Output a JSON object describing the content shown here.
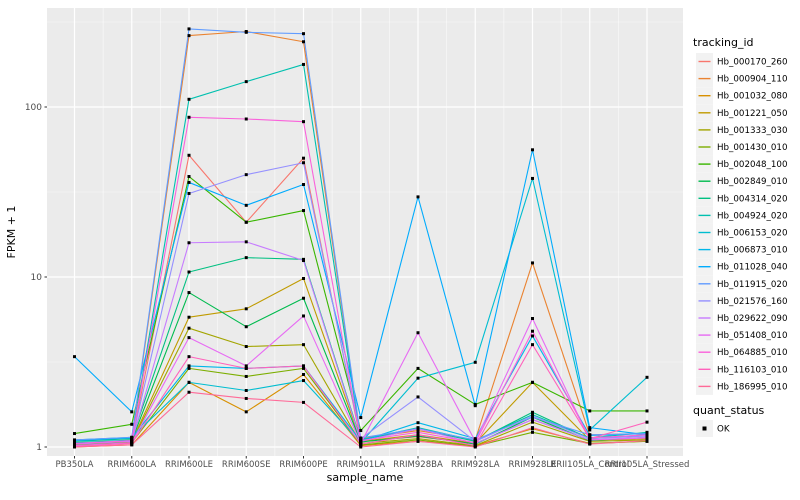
{
  "figure": {
    "background": "#FFFFFF",
    "panel_background": "#EBEBEB",
    "grid_color": "#FFFFFF",
    "tick_color": "#333333",
    "axis_text_color": "#4D4D4D",
    "marker_color": "#000000"
  },
  "chart_data": {
    "type": "line",
    "title": "",
    "xlabel": "sample_name",
    "ylabel": "FPKM + 1",
    "y_scale": "log10",
    "y_ticks": [
      1,
      10,
      100
    ],
    "y_tick_labels": [
      "1",
      "10",
      "100"
    ],
    "y_minor_ticks": [
      3.162,
      31.62,
      316.2
    ],
    "ylim": [
      1,
      357
    ],
    "grid": true,
    "legend_position": "right",
    "categories": [
      "PB350LA",
      "RRIM600LA",
      "RRIM600LE",
      "RRIM600SE",
      "RRIM600PE",
      "RRIM901LA",
      "RRIM928BA",
      "RRIM928LA",
      "RRIM928LE",
      "RRII105LA_Control",
      "RRII105LA_Stressed"
    ],
    "series": [
      {
        "name": "Hb_000170_260",
        "color": "#F8766D",
        "values": [
          1.05,
          1.08,
          52,
          21,
          50,
          1.08,
          1.15,
          1.05,
          1.45,
          1.1,
          1.12
        ]
      },
      {
        "name": "Hb_000904_110",
        "color": "#EA8331",
        "values": [
          1.1,
          1.12,
          263,
          278,
          242,
          1.12,
          1.25,
          1.1,
          12.1,
          1.18,
          1.2
        ]
      },
      {
        "name": "Hb_001032_080",
        "color": "#D89000",
        "values": [
          1.0,
          1.03,
          2.4,
          1.61,
          2.67,
          1.02,
          1.08,
          1.02,
          1.28,
          1.05,
          1.08
        ]
      },
      {
        "name": "Hb_001221_050",
        "color": "#C09B00",
        "values": [
          1.04,
          1.08,
          5.8,
          6.5,
          9.8,
          1.08,
          1.18,
          1.05,
          2.4,
          1.1,
          1.12
        ]
      },
      {
        "name": "Hb_001333_030",
        "color": "#A3A500",
        "values": [
          1.02,
          1.07,
          5.0,
          3.9,
          4.0,
          1.05,
          1.12,
          1.02,
          1.4,
          1.08,
          1.1
        ]
      },
      {
        "name": "Hb_001430_010",
        "color": "#7CAE00",
        "values": [
          1.03,
          1.06,
          2.9,
          2.6,
          2.9,
          1.03,
          1.1,
          1.01,
          1.22,
          1.05,
          1.08
        ]
      },
      {
        "name": "Hb_002048_100",
        "color": "#39B600",
        "values": [
          1.2,
          1.36,
          39,
          21,
          24.6,
          1.25,
          2.9,
          1.78,
          2.4,
          1.63,
          1.63
        ]
      },
      {
        "name": "Hb_002849_010",
        "color": "#00BB4E",
        "values": [
          1.05,
          1.09,
          8.1,
          5.1,
          7.5,
          1.07,
          1.16,
          1.04,
          1.5,
          1.09,
          1.14
        ]
      },
      {
        "name": "Hb_004314_020",
        "color": "#00C081",
        "values": [
          1.08,
          1.12,
          10.7,
          13,
          12.7,
          1.1,
          1.28,
          1.08,
          1.6,
          1.12,
          1.18
        ]
      },
      {
        "name": "Hb_004924_020",
        "color": "#00C0AF",
        "values": [
          1.06,
          1.1,
          111,
          141,
          178,
          1.1,
          1.3,
          1.09,
          1.55,
          1.13,
          1.22
        ]
      },
      {
        "name": "Hb_006153_020",
        "color": "#00BDD0",
        "values": [
          1.1,
          1.14,
          2.4,
          2.15,
          2.46,
          1.06,
          2.54,
          3.15,
          38,
          1.26,
          2.57
        ]
      },
      {
        "name": "Hb_006873_010",
        "color": "#00B7E9",
        "values": [
          1.09,
          1.13,
          3.0,
          2.9,
          3.0,
          1.08,
          1.39,
          1.12,
          4.5,
          1.17,
          1.2
        ]
      },
      {
        "name": "Hb_011028_040",
        "color": "#00ABFD",
        "values": [
          3.4,
          1.61,
          36,
          26.4,
          35,
          1.49,
          29.6,
          1.75,
          56,
          1.3,
          1.18
        ]
      },
      {
        "name": "Hb_011915_020",
        "color": "#619CFF",
        "values": [
          1.1,
          1.14,
          288,
          275,
          270,
          1.13,
          1.28,
          1.1,
          1.5,
          1.18,
          1.2
        ]
      },
      {
        "name": "Hb_021576_160",
        "color": "#9590FF",
        "values": [
          1.05,
          1.09,
          31,
          40,
          47,
          1.12,
          1.97,
          1.08,
          1.52,
          1.12,
          1.16
        ]
      },
      {
        "name": "Hb_029622_090",
        "color": "#C77CFF",
        "values": [
          1.04,
          1.08,
          15.9,
          16.1,
          12.5,
          1.08,
          1.28,
          1.05,
          1.45,
          1.1,
          1.14
        ]
      },
      {
        "name": "Hb_051408_010",
        "color": "#E76BF3",
        "values": [
          1.02,
          1.06,
          4.4,
          3.0,
          5.9,
          1.05,
          4.7,
          1.08,
          5.7,
          1.1,
          1.13
        ]
      },
      {
        "name": "Hb_064885_010",
        "color": "#FA62DB",
        "values": [
          1.05,
          1.09,
          87,
          85,
          82,
          1.09,
          1.22,
          1.06,
          4.8,
          1.13,
          1.18
        ]
      },
      {
        "name": "Hb_116103_010",
        "color": "#FF62BC",
        "values": [
          1.01,
          1.05,
          3.4,
          2.9,
          3.0,
          1.04,
          1.18,
          1.02,
          4.0,
          1.12,
          1.4
        ]
      },
      {
        "name": "Hb_186995_010",
        "color": "#FF6A98",
        "values": [
          1.0,
          1.03,
          2.1,
          1.93,
          1.83,
          1.0,
          1.08,
          1.0,
          1.3,
          1.04,
          1.09
        ]
      }
    ],
    "legend_title": "tracking_id",
    "legend2_title": "quant_status",
    "legend2_items": [
      {
        "label": "OK",
        "marker": "black-square",
        "color": "#000000"
      }
    ]
  }
}
